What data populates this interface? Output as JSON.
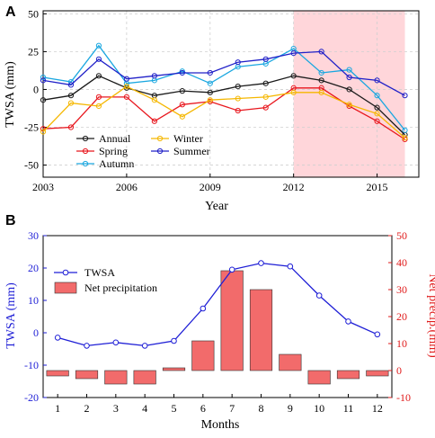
{
  "chart_data": [
    {
      "panel_label": "A",
      "type": "line",
      "xlabel": "Year",
      "ylabel": "TWSA (mm)",
      "xlim": [
        2003,
        2016.5
      ],
      "ylim": [
        -58,
        52
      ],
      "xticks": [
        2003,
        2006,
        2009,
        2012,
        2015
      ],
      "yticks": [
        -50,
        -25,
        0,
        25,
        50
      ],
      "grid": true,
      "shaded_region": {
        "from": 2012,
        "to": 2016,
        "color": "#ffd6da"
      },
      "legend_position": "bottom-left",
      "x": [
        2003,
        2004,
        2005,
        2006,
        2007,
        2008,
        2009,
        2010,
        2011,
        2012,
        2013,
        2014,
        2015,
        2016
      ],
      "series": [
        {
          "name": "Annual",
          "color": "#1a1a1a",
          "values": [
            -7,
            -4,
            9,
            1,
            -4,
            -1,
            -2,
            2,
            4,
            9,
            6,
            0,
            -12,
            -30
          ]
        },
        {
          "name": "Spring",
          "color": "#e8171e",
          "values": [
            -26,
            -25,
            -5,
            -5,
            -21,
            -10,
            -8,
            -14,
            -12,
            1,
            1,
            -11,
            -21,
            -33
          ]
        },
        {
          "name": "Autumn",
          "color": "#1aa7e0",
          "values": [
            8,
            5,
            29,
            4,
            6,
            12,
            4,
            15,
            17,
            27,
            11,
            13,
            -4,
            -27
          ]
        },
        {
          "name": "Winter",
          "color": "#f5b700",
          "values": [
            -28,
            -9,
            -11,
            2,
            -7,
            -18,
            -7,
            -6,
            -5,
            -2,
            -2,
            -10,
            -16,
            -32
          ]
        },
        {
          "name": "Summer",
          "color": "#2020c8",
          "values": [
            6,
            3,
            20,
            7,
            9,
            11,
            11,
            18,
            20,
            24,
            25,
            8,
            6,
            -4
          ]
        }
      ]
    },
    {
      "panel_label": "B",
      "type": "bar+line",
      "xlabel": "Months",
      "ylabel_left": "TWSA (mm)",
      "ylabel_right": "Net precip.(mm)",
      "left_color": "#1f1fd6",
      "right_color": "#e01b1b",
      "ylim_left": [
        -20,
        30
      ],
      "ylim_right": [
        -10,
        50
      ],
      "yticks_left": [
        -20,
        -10,
        0,
        10,
        20,
        30
      ],
      "yticks_right": [
        -10,
        0,
        10,
        20,
        30,
        40,
        50
      ],
      "categories": [
        "1",
        "2",
        "3",
        "4",
        "5",
        "6",
        "7",
        "8",
        "9",
        "10",
        "11",
        "12"
      ],
      "legend_position": "top-left",
      "series": [
        {
          "name": "TWSA",
          "kind": "line",
          "axis": "left",
          "color": "#1f1fd6",
          "values": [
            -1.5,
            -4,
            -3,
            -4,
            -2.5,
            7.5,
            19.5,
            21.5,
            20.5,
            11.5,
            3.5,
            -0.5
          ]
        },
        {
          "name": "Net precipitation",
          "kind": "bar",
          "axis": "right",
          "color": "#f26b6b",
          "values": [
            -2,
            -3,
            -5,
            -5,
            1,
            11,
            37,
            30,
            6,
            -5,
            -3,
            -2
          ]
        }
      ]
    }
  ]
}
